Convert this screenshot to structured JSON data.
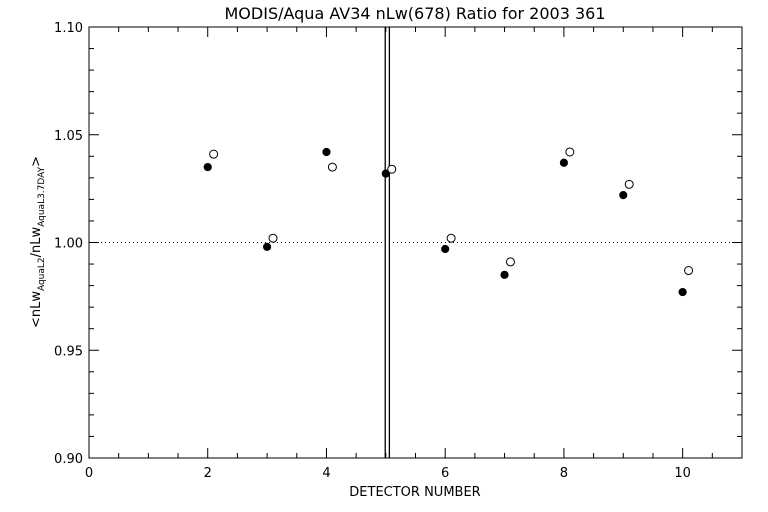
{
  "chart_data": {
    "type": "scatter",
    "title": "MODIS/Aqua AV34 nLw(678) Ratio for 2003 361",
    "xlabel": "DETECTOR NUMBER",
    "ylabel": {
      "prefix": "<nLw",
      "sub1": "AquaL2",
      "mid": "/nLw",
      "sub2": "AquaL3.7DAY",
      "suffix": ">"
    },
    "xlim": [
      0,
      11
    ],
    "ylim": [
      0.9,
      1.1
    ],
    "x_ticks": [
      0,
      2,
      4,
      6,
      8,
      10
    ],
    "x_tick_labels": [
      "0",
      "2",
      "4",
      "6",
      "8",
      "10"
    ],
    "x_minor_step": 0.5,
    "y_ticks": [
      0.9,
      0.95,
      1.0,
      1.05,
      1.1
    ],
    "y_tick_labels": [
      "0.90",
      "0.95",
      "1.00",
      "1.05",
      "1.10"
    ],
    "y_minor_step": 0.01,
    "reference_line_y": 1.0,
    "vertical_lines_x": [
      4.99,
      5.06
    ],
    "series": [
      {
        "marker": "filled-circle",
        "x": [
          2,
          3,
          4,
          5,
          6,
          7,
          8,
          9,
          10
        ],
        "y": [
          1.035,
          0.998,
          1.042,
          1.032,
          0.997,
          0.985,
          1.037,
          1.022,
          0.977
        ]
      },
      {
        "marker": "open-circle",
        "x": [
          2.1,
          3.1,
          4.1,
          5.1,
          6.1,
          7.1,
          8.1,
          9.1,
          10.1
        ],
        "y": [
          1.041,
          1.002,
          1.035,
          1.034,
          1.002,
          0.991,
          1.042,
          1.027,
          0.987
        ]
      }
    ]
  }
}
